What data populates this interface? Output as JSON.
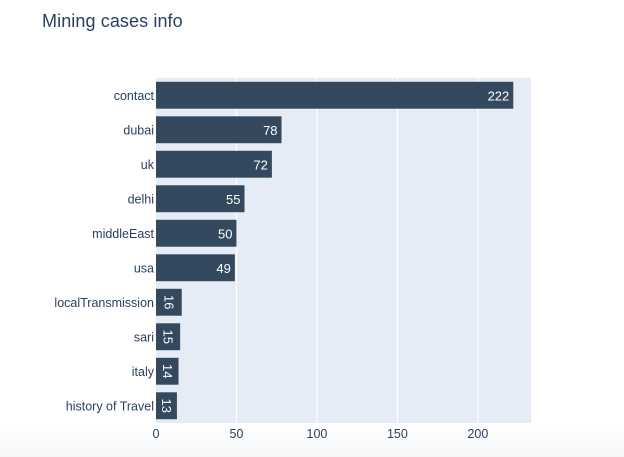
{
  "chart_data": {
    "type": "bar",
    "orientation": "horizontal",
    "title": "Mining cases info",
    "xlabel": "",
    "ylabel": "",
    "categories": [
      "contact",
      "dubai",
      "uk",
      "delhi",
      "middleEast",
      "usa",
      "localTransmission",
      "sari",
      "italy",
      "history of Travel"
    ],
    "values": [
      222,
      78,
      72,
      55,
      50,
      49,
      16,
      15,
      14,
      13
    ],
    "data_labels": [
      "222",
      "78",
      "72",
      "55",
      "50",
      "49",
      "16",
      "15",
      "14",
      "13"
    ],
    "x_ticks": [
      0,
      50,
      100,
      150,
      200
    ],
    "x_tick_labels": [
      "0",
      "50",
      "100",
      "150",
      "200"
    ],
    "xlim": [
      0,
      233
    ],
    "grid": true,
    "legend": "none",
    "bar_color": "#34495e",
    "plot_bg": "#e5ecf6",
    "text_color": "#2a3f5f"
  }
}
